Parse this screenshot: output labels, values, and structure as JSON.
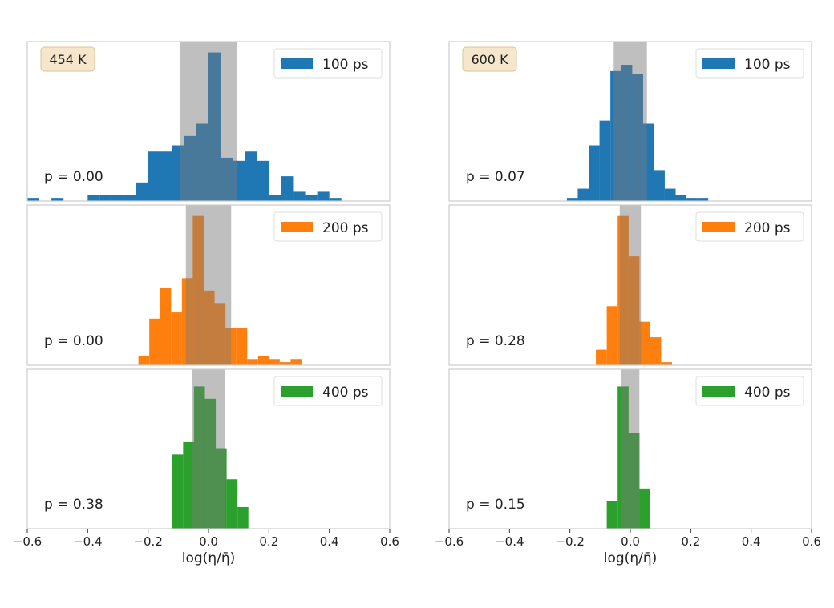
{
  "colors": {
    "blue": "#1f77b4",
    "orange": "#ff7f0e",
    "green": "#2ca02c",
    "band": "#bfbfbf",
    "frame": "#cccccc",
    "temp_box_fill": "#f5e6cc",
    "temp_box_stroke": "#d9c49a"
  },
  "chart_data": {
    "type": "bar",
    "xlim": [
      -0.6,
      0.6
    ],
    "xticks": [
      "−0.6",
      "−0.4",
      "−0.2",
      "0.0",
      "0.2",
      "0.4",
      "0.6"
    ],
    "xtick_values": [
      -0.6,
      -0.4,
      -0.2,
      0.0,
      0.2,
      0.4,
      0.6
    ],
    "xlabel": "log(η/η̄)",
    "panels": [
      {
        "temp": "454 K",
        "time": "100 ps",
        "color": "blue",
        "p": "p = 0.00",
        "band": [
          -0.095,
          0.095
        ],
        "bin_width": 0.04,
        "ymax": 0.32,
        "bins": [
          [
            -0.6,
            0.02
          ],
          [
            -0.52,
            0.02
          ],
          [
            -0.4,
            0.04
          ],
          [
            -0.36,
            0.04
          ],
          [
            -0.32,
            0.04
          ],
          [
            -0.28,
            0.04
          ],
          [
            -0.24,
            0.12
          ],
          [
            -0.2,
            0.32
          ],
          [
            -0.16,
            0.32
          ],
          [
            -0.12,
            0.36
          ],
          [
            -0.08,
            0.42
          ],
          [
            -0.04,
            0.5
          ],
          [
            0.0,
            0.96
          ],
          [
            0.04,
            0.28
          ],
          [
            0.08,
            0.26
          ],
          [
            0.12,
            0.32
          ],
          [
            0.16,
            0.26
          ],
          [
            0.2,
            0.04
          ],
          [
            0.24,
            0.16
          ],
          [
            0.28,
            0.06
          ],
          [
            0.32,
            0.04
          ],
          [
            0.36,
            0.06
          ],
          [
            0.4,
            0.02
          ]
        ]
      },
      {
        "temp": "600 K",
        "time": "100 ps",
        "color": "blue",
        "p": "p = 0.07",
        "band": [
          -0.055,
          0.055
        ],
        "bin_width": 0.036,
        "ymax": 1,
        "bins": [
          [
            -0.21,
            0.02
          ],
          [
            -0.174,
            0.08
          ],
          [
            -0.138,
            0.36
          ],
          [
            -0.102,
            0.52
          ],
          [
            -0.066,
            0.84
          ],
          [
            -0.03,
            0.88
          ],
          [
            0.006,
            0.82
          ],
          [
            0.042,
            0.5
          ],
          [
            0.078,
            0.2
          ],
          [
            0.114,
            0.08
          ],
          [
            0.15,
            0.04
          ],
          [
            0.186,
            0.02
          ],
          [
            0.222,
            0.02
          ]
        ]
      },
      {
        "temp": "",
        "time": "200 ps",
        "color": "orange",
        "p": "p = 0.00",
        "band": [
          -0.075,
          0.075
        ],
        "bin_width": 0.036,
        "ymax": 1,
        "bins": [
          [
            -0.232,
            0.06
          ],
          [
            -0.196,
            0.3
          ],
          [
            -0.16,
            0.5
          ],
          [
            -0.124,
            0.34
          ],
          [
            -0.088,
            0.56
          ],
          [
            -0.052,
            0.96
          ],
          [
            -0.016,
            0.48
          ],
          [
            0.02,
            0.4
          ],
          [
            0.056,
            0.24
          ],
          [
            0.092,
            0.24
          ],
          [
            0.128,
            0.04
          ],
          [
            0.164,
            0.06
          ],
          [
            0.2,
            0.04
          ],
          [
            0.236,
            0.02
          ],
          [
            0.272,
            0.04
          ]
        ]
      },
      {
        "temp": "",
        "time": "200 ps",
        "color": "orange",
        "p": "p = 0.28",
        "band": [
          -0.035,
          0.035
        ],
        "bin_width": 0.036,
        "ymax": 1,
        "bins": [
          [
            -0.114,
            0.1
          ],
          [
            -0.078,
            0.38
          ],
          [
            -0.042,
            0.96
          ],
          [
            -0.006,
            0.7
          ],
          [
            0.03,
            0.28
          ],
          [
            0.066,
            0.18
          ],
          [
            0.102,
            0.02
          ]
        ]
      },
      {
        "temp": "",
        "time": "400 ps",
        "color": "green",
        "p": "p = 0.38",
        "band": [
          -0.055,
          0.055
        ],
        "bin_width": 0.036,
        "ymax": 1,
        "bins": [
          [
            -0.12,
            0.48
          ],
          [
            -0.084,
            0.56
          ],
          [
            -0.048,
            0.92
          ],
          [
            -0.012,
            0.84
          ],
          [
            0.024,
            0.52
          ],
          [
            0.06,
            0.32
          ],
          [
            0.096,
            0.14
          ]
        ]
      },
      {
        "temp": "",
        "time": "400 ps",
        "color": "green",
        "p": "p = 0.15",
        "band": [
          -0.03,
          0.03
        ],
        "bin_width": 0.036,
        "ymax": 1,
        "bins": [
          [
            -0.078,
            0.18
          ],
          [
            -0.042,
            0.92
          ],
          [
            -0.006,
            0.62
          ],
          [
            0.03,
            0.26
          ]
        ]
      }
    ]
  }
}
